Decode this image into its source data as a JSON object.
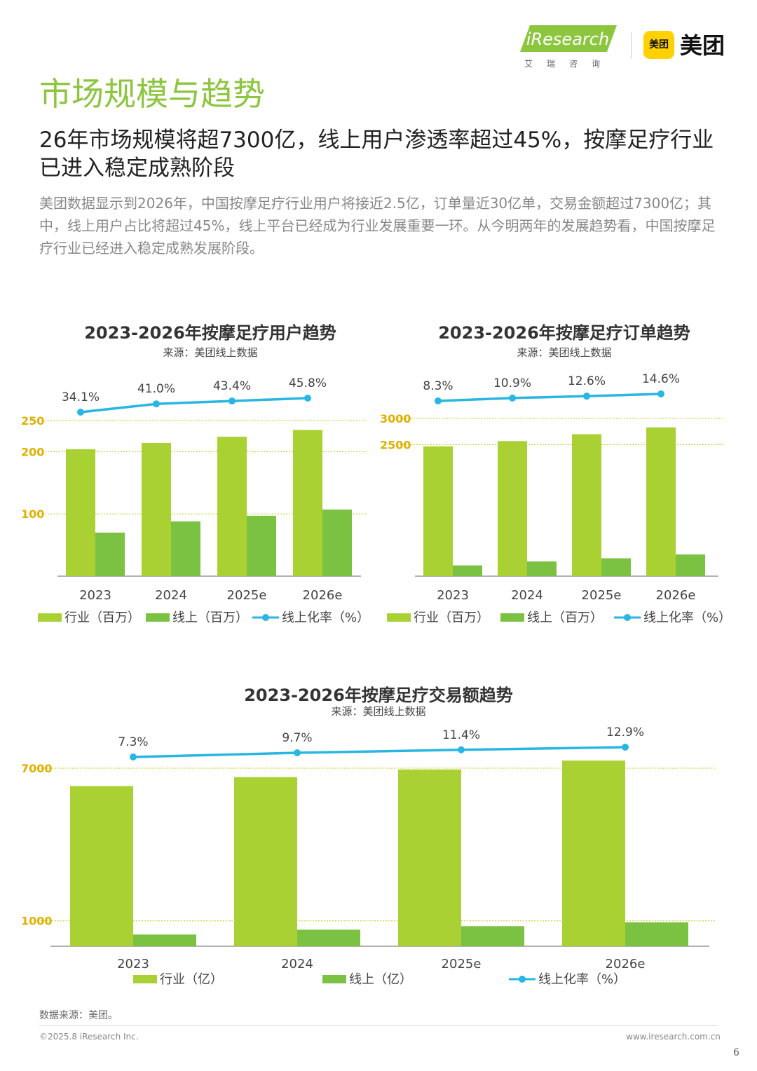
{
  "header": {
    "iresearch_logo": "iResearch",
    "iresearch_sub": "艾瑞咨询",
    "meituan_badge": "美团",
    "meituan_text": "美团"
  },
  "page": {
    "title": "市场规模与趋势",
    "subtitle": "26年市场规模将超7300亿，线上用户渗透率超过45%，按摩足疗行业已进入稳定成熟阶段",
    "description": "美团数据显示到2026年，中国按摩足疗行业用户将接近2.5亿，订单量近30亿单，交易金额超过7300亿；其中，线上用户占比将超过45%，线上平台已经成为行业发展重要一环。从今明两年的发展趋势看，中国按摩足疗行业已经进入稳定成熟发展阶段。"
  },
  "colors": {
    "title_green": "#8cc63f",
    "industry_bar": "#a9d134",
    "online_bar": "#7cc242",
    "rate_line": "#29b6e3",
    "ref_line": "#c8c800",
    "tick_label": "#e0b000"
  },
  "chart_data": [
    {
      "type": "bar",
      "title": "2023-2026年按摩足疗用户趋势",
      "source": "来源：美团线上数据",
      "categories": [
        "2023",
        "2024",
        "2025e",
        "2026e"
      ],
      "series": [
        {
          "name": "行业（百万）",
          "values": [
            204,
            214,
            224,
            235
          ]
        },
        {
          "name": "线上（百万）",
          "values": [
            70,
            88,
            97,
            107
          ]
        },
        {
          "name": "线上化率（%）",
          "type": "line",
          "values": [
            34.1,
            41.0,
            43.4,
            45.8
          ],
          "labels": [
            "34.1%",
            "41.0%",
            "43.4%",
            "45.8%"
          ]
        }
      ],
      "yticks": [
        100,
        200,
        250
      ],
      "ylim": [
        0,
        250
      ]
    },
    {
      "type": "bar",
      "title": "2023-2026年按摩足疗订单趋势",
      "source": "来源：美团线上数据",
      "categories": [
        "2023",
        "2024",
        "2025e",
        "2026e"
      ],
      "series": [
        {
          "name": "行业（百万）",
          "values": [
            2470,
            2570,
            2700,
            2830
          ]
        },
        {
          "name": "线上（百万）",
          "values": [
            205,
            280,
            340,
            413
          ]
        },
        {
          "name": "线上化率（%）",
          "type": "line",
          "values": [
            8.3,
            10.9,
            12.6,
            14.6
          ],
          "labels": [
            "8.3%",
            "10.9%",
            "12.6%",
            "14.6%"
          ]
        }
      ],
      "yticks": [
        2500,
        3000
      ],
      "ylim": [
        0,
        3000
      ]
    },
    {
      "type": "bar",
      "title": "2023-2026年按摩足疗交易额趋势",
      "source": "来源：美团线上数据",
      "categories": [
        "2023",
        "2024",
        "2025e",
        "2026e"
      ],
      "series": [
        {
          "name": "行业（亿）",
          "values": [
            6300,
            6650,
            6950,
            7300
          ]
        },
        {
          "name": "线上（亿）",
          "values": [
            460,
            650,
            790,
            940
          ]
        },
        {
          "name": "线上化率（%）",
          "type": "line",
          "values": [
            7.3,
            9.7,
            11.4,
            12.9
          ],
          "labels": [
            "7.3%",
            "9.7%",
            "11.4%",
            "12.9%"
          ]
        }
      ],
      "yticks": [
        1000,
        7000
      ],
      "ylim": [
        0,
        7000
      ]
    }
  ],
  "footer": {
    "data_source": "数据来源：美团。",
    "copyright": "©2025.8 iResearch Inc.",
    "url": "www.iresearch.com.cn",
    "page_number": "6"
  }
}
